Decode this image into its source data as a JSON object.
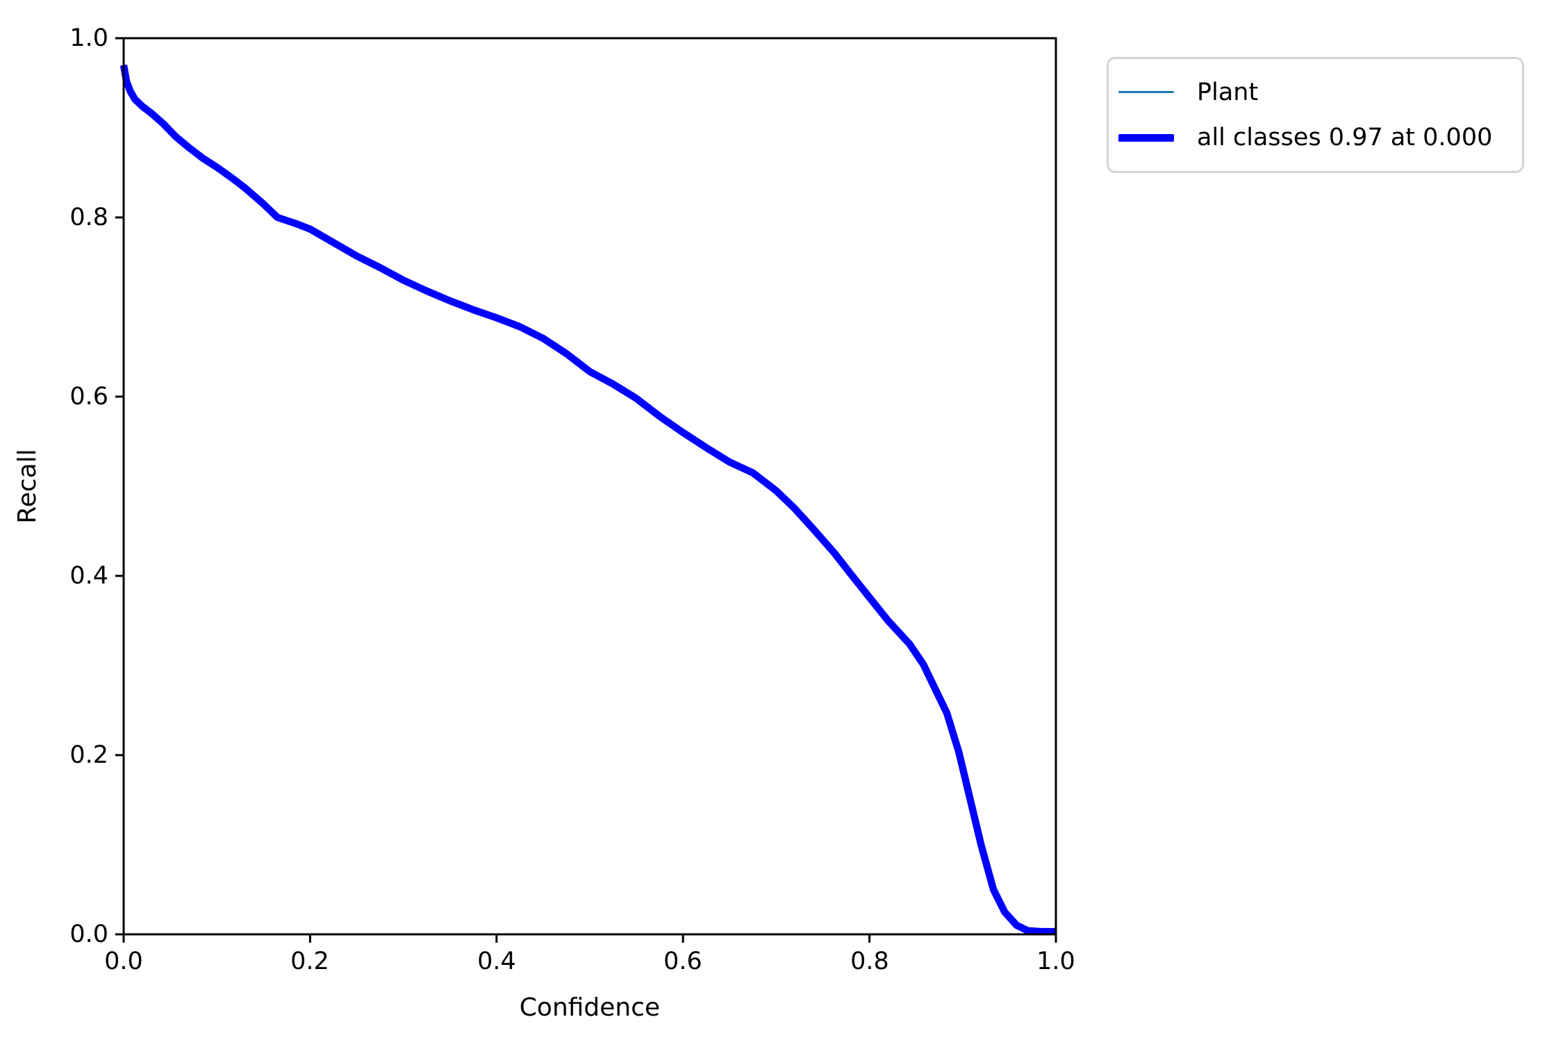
{
  "figure": {
    "background": "#ffffff",
    "xlabel": "Confidence",
    "ylabel": "Recall",
    "x_tick_labels": [
      "0.0",
      "0.2",
      "0.4",
      "0.6",
      "0.8",
      "1.0"
    ],
    "y_tick_labels": [
      "0.0",
      "0.2",
      "0.4",
      "0.6",
      "0.8",
      "1.0"
    ]
  },
  "legend": {
    "items": [
      {
        "label": "Plant",
        "color": "#1f77b4",
        "linewidth_pt": 1
      },
      {
        "label": "all classes 0.97 at 0.000",
        "color": "#0000ff",
        "linewidth_pt": 3
      }
    ]
  },
  "chart_data": {
    "type": "line",
    "title": "",
    "xlabel": "Confidence",
    "ylabel": "Recall",
    "xlim": [
      0.0,
      1.0
    ],
    "ylim": [
      0.0,
      1.0
    ],
    "x_ticks": [
      0.0,
      0.2,
      0.4,
      0.6,
      0.8,
      1.0
    ],
    "y_ticks": [
      0.0,
      0.2,
      0.4,
      0.6,
      0.8,
      1.0
    ],
    "grid": false,
    "legend_position": "outside-upper-right",
    "annotation": "max recall 0.97 at confidence 0.000",
    "series": [
      {
        "name": "Plant",
        "color": "#1f77b4",
        "linewidth_pt": 1,
        "x": [
          0.0,
          0.003,
          0.007,
          0.012,
          0.02,
          0.03,
          0.042,
          0.056,
          0.07,
          0.085,
          0.1,
          0.115,
          0.13,
          0.15,
          0.165,
          0.185,
          0.2,
          0.225,
          0.25,
          0.275,
          0.3,
          0.325,
          0.35,
          0.375,
          0.4,
          0.425,
          0.45,
          0.475,
          0.5,
          0.525,
          0.55,
          0.575,
          0.6,
          0.625,
          0.65,
          0.675,
          0.7,
          0.72,
          0.74,
          0.762,
          0.78,
          0.8,
          0.82,
          0.843,
          0.858,
          0.87,
          0.883,
          0.896,
          0.908,
          0.92,
          0.933,
          0.945,
          0.958,
          0.97,
          0.985,
          1.0
        ],
        "y": [
          0.97,
          0.952,
          0.941,
          0.932,
          0.924,
          0.916,
          0.905,
          0.89,
          0.878,
          0.866,
          0.856,
          0.845,
          0.833,
          0.815,
          0.8,
          0.793,
          0.787,
          0.772,
          0.757,
          0.744,
          0.73,
          0.718,
          0.707,
          0.697,
          0.688,
          0.678,
          0.665,
          0.648,
          0.628,
          0.614,
          0.598,
          0.578,
          0.56,
          0.543,
          0.527,
          0.515,
          0.495,
          0.475,
          0.452,
          0.426,
          0.402,
          0.376,
          0.35,
          0.324,
          0.301,
          0.275,
          0.247,
          0.203,
          0.151,
          0.099,
          0.05,
          0.025,
          0.01,
          0.004,
          0.003,
          0.003
        ]
      },
      {
        "name": "all classes 0.97 at 0.000",
        "color": "#0000ff",
        "linewidth_pt": 3,
        "x": [
          0.0,
          0.003,
          0.007,
          0.012,
          0.02,
          0.03,
          0.042,
          0.056,
          0.07,
          0.085,
          0.1,
          0.115,
          0.13,
          0.15,
          0.165,
          0.185,
          0.2,
          0.225,
          0.25,
          0.275,
          0.3,
          0.325,
          0.35,
          0.375,
          0.4,
          0.425,
          0.45,
          0.475,
          0.5,
          0.525,
          0.55,
          0.575,
          0.6,
          0.625,
          0.65,
          0.675,
          0.7,
          0.72,
          0.74,
          0.762,
          0.78,
          0.8,
          0.82,
          0.843,
          0.858,
          0.87,
          0.883,
          0.896,
          0.908,
          0.92,
          0.933,
          0.945,
          0.958,
          0.97,
          0.985,
          1.0
        ],
        "y": [
          0.97,
          0.952,
          0.941,
          0.932,
          0.924,
          0.916,
          0.905,
          0.89,
          0.878,
          0.866,
          0.856,
          0.845,
          0.833,
          0.815,
          0.8,
          0.793,
          0.787,
          0.772,
          0.757,
          0.744,
          0.73,
          0.718,
          0.707,
          0.697,
          0.688,
          0.678,
          0.665,
          0.648,
          0.628,
          0.614,
          0.598,
          0.578,
          0.56,
          0.543,
          0.527,
          0.515,
          0.495,
          0.475,
          0.452,
          0.426,
          0.402,
          0.376,
          0.35,
          0.324,
          0.301,
          0.275,
          0.247,
          0.203,
          0.151,
          0.099,
          0.05,
          0.025,
          0.01,
          0.004,
          0.003,
          0.003
        ]
      }
    ]
  }
}
